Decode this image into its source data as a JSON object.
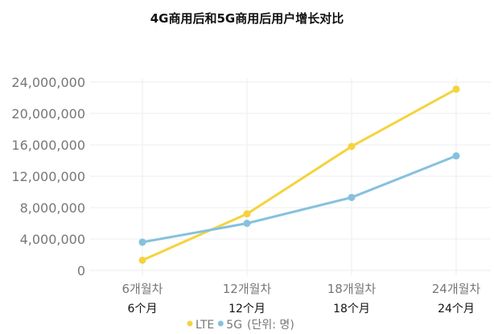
{
  "chart_data": {
    "type": "line",
    "title": "4G商用后和5G商用后用户增长对比",
    "categories": [
      "6개월차",
      "12개월차",
      "18개월차",
      "24개월차"
    ],
    "categories_secondary": [
      "6个月",
      "12个月",
      "18个月",
      "24个月"
    ],
    "y_ticks": [
      "0",
      "4,000,000",
      "8,000,000",
      "12,000,000",
      "16,000,000",
      "20,000,000",
      "24,000,000"
    ],
    "ylim": [
      0,
      24000000
    ],
    "grid": true,
    "legend_position": "bottom",
    "legend_note": "(단위: 명)",
    "series": [
      {
        "name": "LTE",
        "color": "#f5d33f",
        "values": [
          1300000,
          7200000,
          15800000,
          23100000
        ]
      },
      {
        "name": "5G",
        "color": "#86c1de",
        "values": [
          3600000,
          6000000,
          9300000,
          14600000
        ]
      }
    ]
  }
}
